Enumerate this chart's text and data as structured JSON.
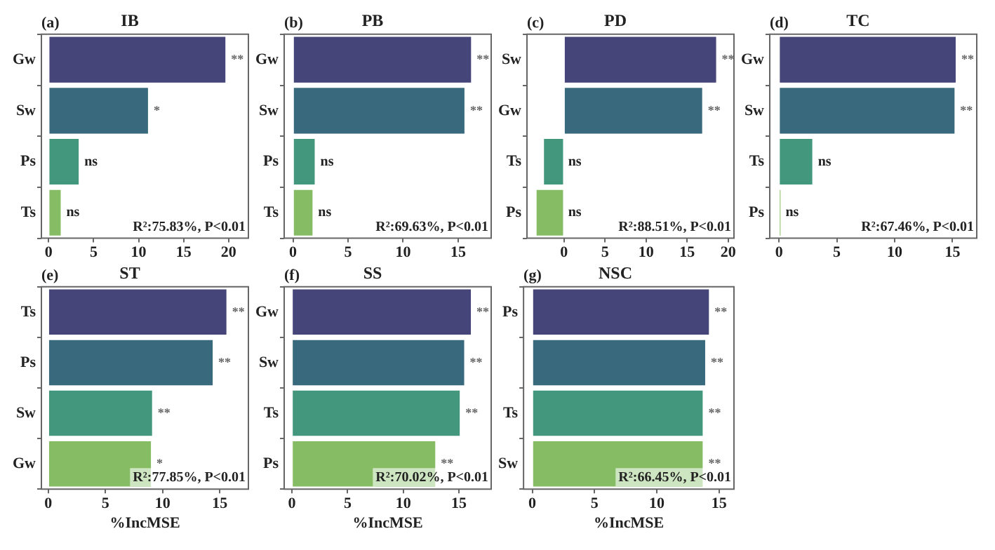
{
  "chart_data": [
    {
      "type": "bar",
      "orientation": "horizontal",
      "title": "IB",
      "annotations": [
        "(a)",
        "R²:75.83%, P<0.01"
      ],
      "categories": [
        "Gw",
        "Sw",
        "Ps",
        "Ts"
      ],
      "values": [
        19.8,
        11.2,
        3.5,
        1.5
      ],
      "value_labels": [
        "**",
        "*",
        "ns",
        "ns"
      ],
      "colors": [
        "#46457a",
        "#38697d",
        "#43977d",
        "#86bd64"
      ],
      "xlim": [
        -0.8,
        22.2
      ],
      "xticks": [
        0,
        5,
        10,
        15,
        20
      ],
      "grid": false,
      "legend": false
    },
    {
      "type": "bar",
      "orientation": "horizontal",
      "title": "PB",
      "annotations": [
        "(b)",
        "R²:69.63%, P<0.01"
      ],
      "categories": [
        "Gw",
        "Sw",
        "Ps",
        "Ts"
      ],
      "values": [
        16.3,
        15.7,
        2.1,
        1.9
      ],
      "value_labels": [
        "**",
        "**",
        "ns",
        "ns"
      ],
      "colors": [
        "#46457a",
        "#38697d",
        "#43977d",
        "#86bd64"
      ],
      "xlim": [
        -0.8,
        18.0
      ],
      "xticks": [
        0,
        5,
        10,
        15
      ],
      "grid": false,
      "legend": false
    },
    {
      "type": "bar",
      "orientation": "horizontal",
      "title": "PD",
      "annotations": [
        "(c)",
        "R²:88.51%, P<0.01"
      ],
      "categories": [
        "Sw",
        "Gw",
        "Ts",
        "Ps"
      ],
      "values": [
        18.7,
        17.0,
        -2.6,
        -3.5
      ],
      "value_labels": [
        "**",
        "**",
        "ns",
        "ns"
      ],
      "colors": [
        "#46457a",
        "#38697d",
        "#43977d",
        "#86bd64"
      ],
      "xlim": [
        -4.5,
        20.7
      ],
      "xticks": [
        0,
        5,
        10,
        15,
        20
      ],
      "grid": false,
      "legend": false
    },
    {
      "type": "bar",
      "orientation": "horizontal",
      "title": "TC",
      "annotations": [
        "(d)",
        "R²:67.46%, P<0.01"
      ],
      "categories": [
        "Gw",
        "Sw",
        "Ts",
        "Ps"
      ],
      "values": [
        15.4,
        15.3,
        3.0,
        0.2
      ],
      "value_labels": [
        "**",
        "**",
        "ns",
        "ns"
      ],
      "colors": [
        "#46457a",
        "#38697d",
        "#43977d",
        "#86bd64"
      ],
      "xlim": [
        -0.8,
        17.1
      ],
      "xticks": [
        0,
        5,
        10,
        15
      ],
      "grid": false,
      "legend": false
    },
    {
      "type": "bar",
      "orientation": "horizontal",
      "title": "ST",
      "xlabel": "%IncMSE",
      "annotations": [
        "(e)",
        "R²:77.85%, P<0.01"
      ],
      "categories": [
        "Ts",
        "Ps",
        "Sw",
        "Gw"
      ],
      "values": [
        15.7,
        14.5,
        9.2,
        9.1
      ],
      "value_labels": [
        "**",
        "**",
        "**",
        "*"
      ],
      "colors": [
        "#46457a",
        "#38697d",
        "#43977d",
        "#86bd64"
      ],
      "xlim": [
        -0.6,
        17.5
      ],
      "xticks": [
        0,
        5,
        10,
        15
      ],
      "grid": false,
      "legend": false
    },
    {
      "type": "bar",
      "orientation": "horizontal",
      "title": "SS",
      "xlabel": "%IncMSE",
      "annotations": [
        "(f)",
        "R²:70.02%, P<0.01"
      ],
      "categories": [
        "Gw",
        "Sw",
        "Ts",
        "Ps"
      ],
      "values": [
        16.2,
        15.6,
        15.2,
        13.0
      ],
      "value_labels": [
        "**",
        "**",
        "**",
        "**"
      ],
      "colors": [
        "#46457a",
        "#38697d",
        "#43977d",
        "#86bd64"
      ],
      "xlim": [
        -0.7,
        17.9
      ],
      "xticks": [
        0,
        5,
        10,
        15
      ],
      "grid": false,
      "legend": false
    },
    {
      "type": "bar",
      "orientation": "horizontal",
      "title": "NSC",
      "xlabel": "%IncMSE",
      "annotations": [
        "(g)",
        "R²:66.45%, P<0.01"
      ],
      "categories": [
        "Ps",
        null,
        "Ts",
        "Sw"
      ],
      "values": [
        14.3,
        14.0,
        13.8,
        13.8
      ],
      "value_labels": [
        "**",
        "**",
        "**",
        "**"
      ],
      "colors": [
        "#46457a",
        "#38697d",
        "#43977d",
        "#86bd64"
      ],
      "xlim": [
        -0.7,
        16.2
      ],
      "xticks": [
        0,
        5,
        10,
        15
      ],
      "grid": false,
      "legend": false
    }
  ]
}
